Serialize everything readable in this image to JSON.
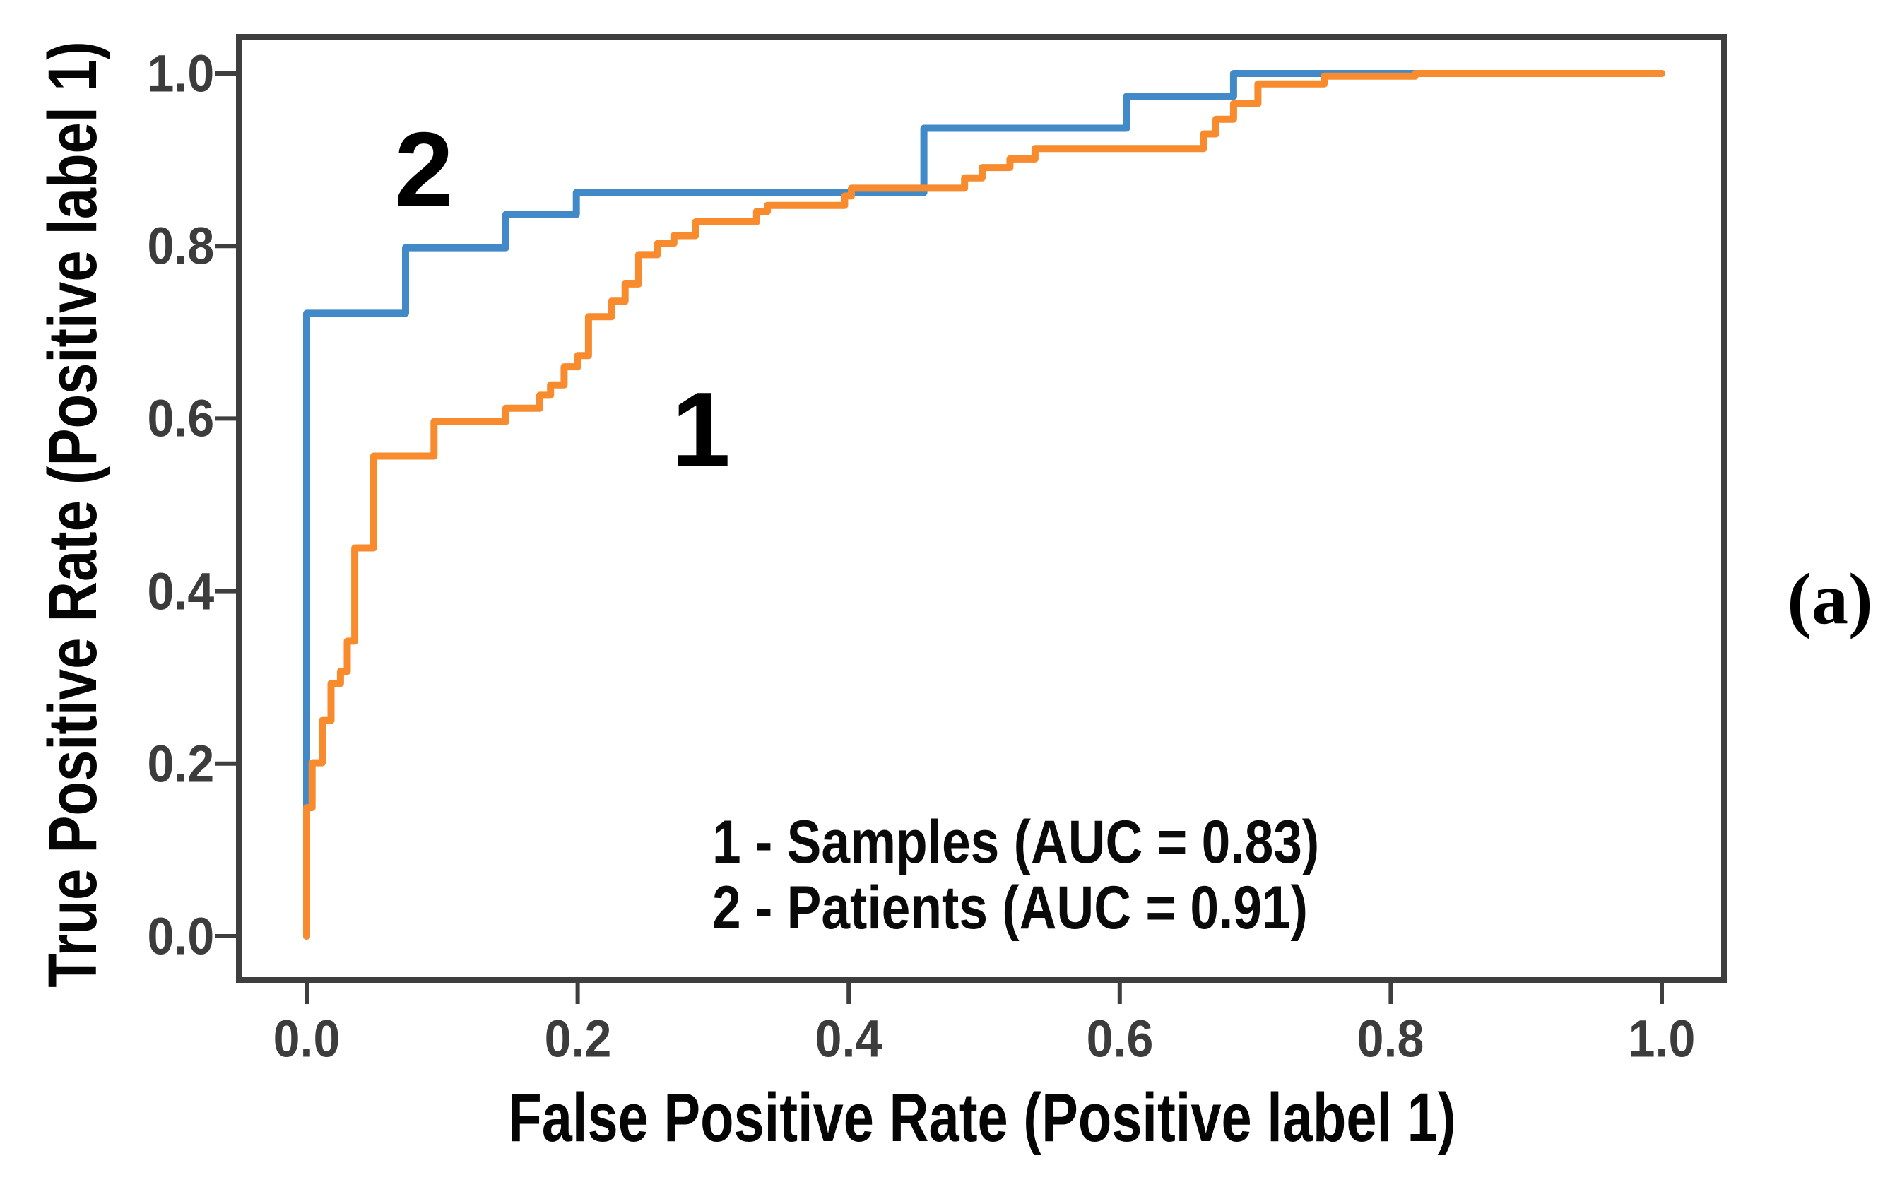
{
  "figure": {
    "panel_label": "(a)"
  },
  "chart_data": {
    "type": "line",
    "subtype": "roc_step_curves",
    "title": "",
    "xlabel": "False Positive Rate (Positive label 1)",
    "ylabel": "True Positive Rate (Positive label 1)",
    "xlim": [
      -0.05,
      1.05
    ],
    "ylim": [
      -0.05,
      1.04
    ],
    "grid": false,
    "xticks": {
      "values": [
        0.0,
        0.2,
        0.4,
        0.6,
        0.8,
        1.0
      ],
      "labels": [
        "0.0",
        "0.2",
        "0.4",
        "0.6",
        "0.8",
        "1.0"
      ]
    },
    "yticks": {
      "values": [
        0.0,
        0.2,
        0.4,
        0.6,
        0.8,
        1.0
      ],
      "labels": [
        "0.0",
        "0.2",
        "0.4",
        "0.6",
        "0.8",
        "1.0"
      ]
    },
    "legend": {
      "position": "lower-center-inside",
      "lines": [
        "1 - Samples (AUC = 0.83)",
        "2 - Patients (AUC = 0.91)"
      ]
    },
    "series": [
      {
        "id": "patients",
        "curve_number": "2",
        "name": "Patients",
        "auc": 0.91,
        "color": "#4289c7",
        "points": [
          [
            0,
            0
          ],
          [
            0,
            0.722
          ],
          [
            0.073,
            0.722
          ],
          [
            0.073,
            0.798
          ],
          [
            0.147,
            0.798
          ],
          [
            0.147,
            0.8365
          ],
          [
            0.199,
            0.8365
          ],
          [
            0.199,
            0.862
          ],
          [
            0.4555,
            0.862
          ],
          [
            0.4555,
            0.9365
          ],
          [
            0.605,
            0.9365
          ],
          [
            0.605,
            0.9735
          ],
          [
            0.684,
            0.9735
          ],
          [
            0.684,
            1.0
          ],
          [
            1.0,
            1.0
          ]
        ]
      },
      {
        "id": "samples",
        "curve_number": "1",
        "name": "Samples",
        "auc": 0.83,
        "color": "#f78b2e",
        "points": [
          [
            0,
            0
          ],
          [
            0,
            0.149
          ],
          [
            0.004,
            0.149
          ],
          [
            0.004,
            0.201
          ],
          [
            0.0115,
            0.201
          ],
          [
            0.0115,
            0.25
          ],
          [
            0.018,
            0.25
          ],
          [
            0.018,
            0.293
          ],
          [
            0.025,
            0.293
          ],
          [
            0.025,
            0.307
          ],
          [
            0.03,
            0.307
          ],
          [
            0.03,
            0.342
          ],
          [
            0.0355,
            0.342
          ],
          [
            0.0355,
            0.45
          ],
          [
            0.0495,
            0.45
          ],
          [
            0.0495,
            0.5565
          ],
          [
            0.094,
            0.5565
          ],
          [
            0.094,
            0.5965
          ],
          [
            0.147,
            0.5965
          ],
          [
            0.147,
            0.612
          ],
          [
            0.172,
            0.612
          ],
          [
            0.172,
            0.627
          ],
          [
            0.18,
            0.627
          ],
          [
            0.18,
            0.639
          ],
          [
            0.19,
            0.639
          ],
          [
            0.19,
            0.66
          ],
          [
            0.2,
            0.66
          ],
          [
            0.2,
            0.673
          ],
          [
            0.208,
            0.673
          ],
          [
            0.208,
            0.718
          ],
          [
            0.225,
            0.718
          ],
          [
            0.225,
            0.736
          ],
          [
            0.235,
            0.736
          ],
          [
            0.235,
            0.756
          ],
          [
            0.245,
            0.756
          ],
          [
            0.245,
            0.79
          ],
          [
            0.259,
            0.79
          ],
          [
            0.259,
            0.803
          ],
          [
            0.271,
            0.803
          ],
          [
            0.271,
            0.812
          ],
          [
            0.287,
            0.812
          ],
          [
            0.287,
            0.828
          ],
          [
            0.332,
            0.828
          ],
          [
            0.332,
            0.84
          ],
          [
            0.34,
            0.84
          ],
          [
            0.34,
            0.847
          ],
          [
            0.397,
            0.847
          ],
          [
            0.397,
            0.858
          ],
          [
            0.402,
            0.858
          ],
          [
            0.402,
            0.867
          ],
          [
            0.4855,
            0.867
          ],
          [
            0.4855,
            0.879
          ],
          [
            0.4985,
            0.879
          ],
          [
            0.4985,
            0.891
          ],
          [
            0.519,
            0.891
          ],
          [
            0.519,
            0.901
          ],
          [
            0.5375,
            0.901
          ],
          [
            0.5375,
            0.913
          ],
          [
            0.662,
            0.913
          ],
          [
            0.662,
            0.93
          ],
          [
            0.671,
            0.93
          ],
          [
            0.671,
            0.947
          ],
          [
            0.684,
            0.947
          ],
          [
            0.684,
            0.965
          ],
          [
            0.702,
            0.965
          ],
          [
            0.702,
            0.988
          ],
          [
            0.751,
            0.988
          ],
          [
            0.751,
            0.997
          ],
          [
            0.818,
            0.997
          ],
          [
            0.818,
            1.0
          ],
          [
            1.0,
            1.0
          ]
        ]
      }
    ],
    "annotations": [
      {
        "text": "2",
        "x": 0.0866,
        "y": 0.8886
      },
      {
        "text": "1",
        "x": 0.291,
        "y": 0.587
      }
    ],
    "axis_color": "#3e3e3e",
    "background_color": "#ffffff"
  }
}
